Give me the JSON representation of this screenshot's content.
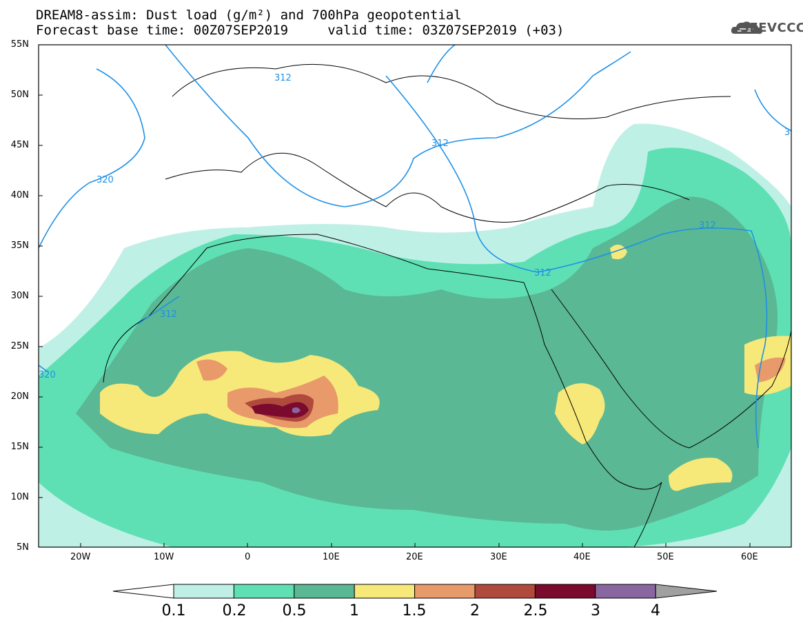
{
  "title": {
    "line1": "DREAM8-assim: Dust load (g/m²) and 700hPa geopotential",
    "line2": "Forecast base time: 00Z07SEP2019     valid time: 03Z07SEP2019 (+03)"
  },
  "logo": {
    "text": "SEEVCCC",
    "icon": "cloud-icon"
  },
  "map": {
    "projection": "lat-lon",
    "lon_range": [
      -25,
      65
    ],
    "lat_range": [
      5,
      55
    ],
    "lat_ticks": [
      "55N",
      "50N",
      "45N",
      "40N",
      "35N",
      "30N",
      "25N",
      "20N",
      "15N",
      "10N",
      "5N"
    ],
    "lon_ticks": [
      "20W",
      "10W",
      "0",
      "10E",
      "20E",
      "30E",
      "40E",
      "50E",
      "60E"
    ],
    "contour_labels": [
      "320",
      "312",
      "312",
      "312",
      "312",
      "312",
      "320",
      "3"
    ],
    "contour_color": "#1e90e6"
  },
  "colorbar": {
    "levels": [
      "0.1",
      "0.2",
      "0.5",
      "1",
      "1.5",
      "2",
      "2.5",
      "3",
      "4"
    ],
    "colors": [
      "#bff0e6",
      "#5fe0b4",
      "#5ab894",
      "#f7e87a",
      "#e89a6a",
      "#b04a3c",
      "#7a0a2e",
      "#8a66a0",
      "#a0a0a0"
    ]
  }
}
